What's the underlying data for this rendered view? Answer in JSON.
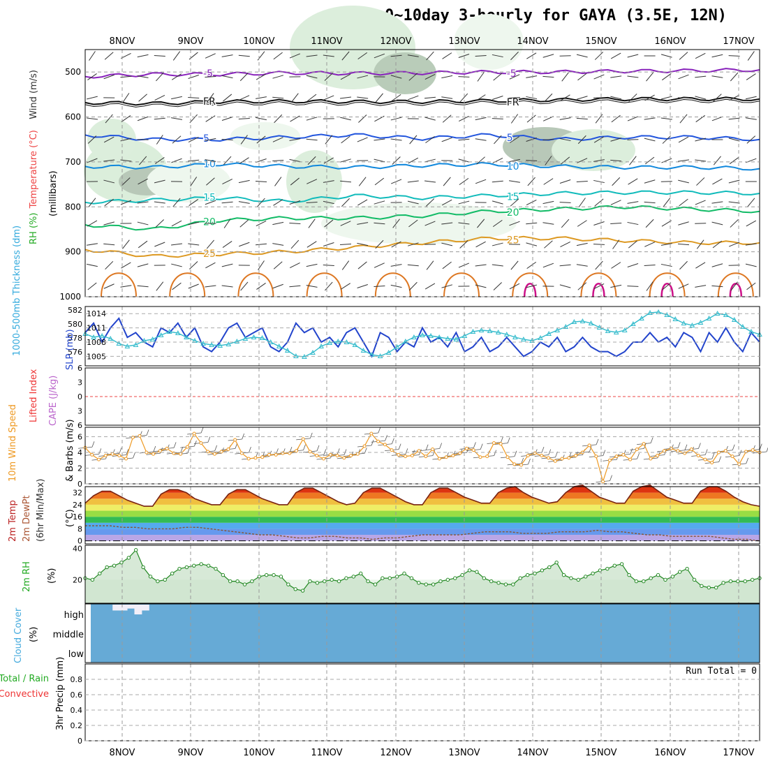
{
  "title": "GFS 0~10day 3-hourly for GAYA (3.5E, 12N)",
  "chart_data": [
    {
      "type": "line",
      "panel": "upper-air",
      "ylabel_parts": [
        {
          "text": "RH (%)",
          "color": "#22aa22"
        },
        {
          "text": "Temperature (°C)",
          "color": "#ee4444"
        },
        {
          "text": "Wind (m/s)",
          "color": "#333333"
        }
      ],
      "ylabel_right": "(millibars)",
      "yaxis": "pressure",
      "ylim": [
        450,
        1000
      ],
      "yticks": [
        500,
        600,
        700,
        800,
        900,
        1000
      ],
      "x_days": [
        "8NOV",
        "9NOV",
        "10NOV",
        "11NOV",
        "12NOV",
        "13NOV",
        "14NOV",
        "15NOV",
        "16NOV",
        "17NOV"
      ],
      "isotherms": [
        {
          "label": "-5",
          "values_mb": [
            510,
            505,
            505,
            502,
            503,
            502,
            500,
            500,
            498,
            497,
            495
          ],
          "color": "#8822bb"
        },
        {
          "label": "FR",
          "values_mb": [
            568,
            570,
            566,
            565,
            566,
            566,
            564,
            562,
            560,
            560,
            560
          ],
          "color": "#111111"
        },
        {
          "label": "5",
          "values_mb": [
            640,
            650,
            650,
            645,
            640,
            648,
            640,
            650,
            645,
            645,
            650
          ],
          "color": "#2255dd"
        },
        {
          "label": "10",
          "values_mb": [
            710,
            712,
            705,
            710,
            712,
            708,
            705,
            710,
            712,
            712,
            715
          ],
          "color": "#1188dd"
        },
        {
          "label": "15",
          "values_mb": [
            790,
            785,
            780,
            788,
            775,
            780,
            775,
            770,
            768,
            768,
            770
          ],
          "color": "#11bbbb"
        },
        {
          "label": "20",
          "values_mb": [
            840,
            850,
            830,
            825,
            825,
            820,
            810,
            805,
            800,
            805,
            810
          ],
          "color": "#11bb66"
        },
        {
          "label": "25",
          "values_mb": [
            895,
            910,
            905,
            900,
            890,
            880,
            870,
            870,
            875,
            880,
            880
          ],
          "color": "#dd9922"
        }
      ]
    },
    {
      "type": "line",
      "panel": "thickness-slp",
      "ylabel_left": "1000-500mb Thickness (dm)",
      "ylabel_right": "SLP (mb)",
      "yticks_left": [
        576,
        578,
        580,
        582
      ],
      "yticks_right": [
        1005,
        1008,
        1011,
        1014
      ],
      "series": [
        {
          "name": "SLP",
          "color": "#2244cc",
          "values": [
            1010,
            1012,
            1008,
            1011,
            1013,
            1009,
            1010,
            1008,
            1007,
            1011,
            1010,
            1012,
            1009,
            1011,
            1007,
            1006,
            1008,
            1011,
            1012,
            1009,
            1010,
            1011,
            1007,
            1006,
            1008,
            1012,
            1010,
            1011,
            1008,
            1009,
            1007,
            1010,
            1011,
            1008,
            1005,
            1010,
            1009,
            1006,
            1008,
            1007,
            1011,
            1008,
            1009,
            1007,
            1010,
            1006,
            1007,
            1009,
            1006,
            1007,
            1009,
            1007,
            1005,
            1006,
            1008,
            1007,
            1009,
            1006,
            1007,
            1009,
            1007,
            1006,
            1006,
            1005,
            1006,
            1008,
            1008,
            1010,
            1008,
            1009,
            1007,
            1010,
            1009,
            1006,
            1010,
            1008,
            1011,
            1008,
            1006,
            1010,
            1008
          ]
        },
        {
          "name": "Thickness",
          "color": "#33bbcc",
          "values": [
            578.6,
            578.1,
            578.3,
            577.9,
            577.2,
            576.8,
            577.0,
            577.6,
            577.8,
            578.4,
            578.9,
            578.7,
            578.1,
            577.6,
            577.2,
            577.0,
            576.9,
            577.1,
            577.5,
            577.9,
            578.1,
            578.0,
            577.4,
            576.8,
            576.2,
            575.4,
            575.3,
            575.9,
            576.8,
            577.3,
            577.5,
            577.4,
            577.0,
            576.2,
            575.6,
            575.4,
            575.9,
            576.7,
            577.5,
            578.1,
            578.4,
            578.3,
            578.1,
            577.9,
            577.8,
            578.3,
            578.9,
            579.1,
            579.0,
            578.8,
            578.5,
            578.1,
            577.8,
            577.6,
            578.0,
            578.6,
            579.1,
            579.6,
            580.3,
            580.4,
            580.1,
            579.5,
            579.0,
            578.8,
            579.1,
            580.0,
            580.8,
            581.6,
            581.7,
            581.3,
            580.7,
            580.1,
            579.8,
            580.2,
            580.8,
            581.5,
            581.3,
            580.6,
            579.6,
            578.9,
            578.5
          ]
        }
      ]
    },
    {
      "type": "line",
      "panel": "stability",
      "ylabel_left": "Lifted Index",
      "ylabel_right": "CAPE (J/kg)",
      "yticks": [
        -6,
        -3,
        0,
        3,
        6
      ],
      "series": [
        {
          "name": "Lifted Index",
          "color": "#ee3333",
          "values": [
            0
          ]
        }
      ]
    },
    {
      "type": "line",
      "panel": "wind10m",
      "ylabel_left": "10m Wind Speed",
      "ylabel_right": "& Barbs (m/s)",
      "yticks": [
        0,
        2,
        4,
        6
      ],
      "series": [
        {
          "name": "10m Wind Speed",
          "color": "#ee9922",
          "values": [
            4.6,
            3.7,
            3.1,
            3.6,
            3.8,
            3.6,
            3.2,
            5.9,
            6.1,
            4.0,
            3.8,
            4.2,
            4.5,
            3.9,
            3.8,
            4.7,
            6.4,
            5.2,
            4.1,
            3.8,
            4.1,
            4.4,
            5.6,
            3.9,
            3.2,
            3.3,
            3.4,
            3.7,
            3.7,
            3.9,
            3.9,
            4.2,
            5.7,
            4.1,
            3.6,
            3.2,
            3.7,
            3.6,
            3.3,
            3.6,
            3.8,
            4.8,
            6.4,
            5.4,
            5.0,
            4.3,
            3.7,
            3.5,
            3.6,
            4.2,
            3.5,
            4.4,
            3.2,
            3.4,
            3.6,
            3.9,
            4.5,
            4.3,
            3.4,
            3.5,
            5.2,
            5.1,
            3.4,
            2.5,
            2.4,
            3.6,
            3.9,
            3.6,
            3.3,
            2.9,
            3.2,
            3.3,
            3.6,
            4.0,
            4.9,
            3.5,
            0.3,
            3.0,
            3.5,
            3.7,
            3.1,
            4.4,
            5.1,
            3.2,
            3.6,
            4.2,
            4.5,
            4.2,
            3.9,
            4.4,
            3.6,
            3.1,
            2.7,
            4.0,
            4.2,
            3.5,
            2.5,
            4.1,
            4.3,
            4.0
          ]
        }
      ]
    },
    {
      "type": "area",
      "panel": "temperature2m",
      "ylabel_parts": [
        "2m Temp",
        "2m DewPt",
        "(6hr Min/Max)"
      ],
      "ylabel_right": "(°C)",
      "yticks": [
        0,
        8,
        16,
        24,
        32
      ],
      "series": [
        {
          "name": "2m Temp",
          "color": "#772211",
          "values": [
            25,
            30,
            33,
            33,
            30,
            27,
            25,
            23,
            23,
            31,
            34,
            34,
            32,
            28,
            26,
            24,
            24,
            31,
            34,
            34,
            31,
            28,
            26,
            24,
            24,
            32,
            35,
            35,
            32,
            29,
            26,
            24,
            25,
            32,
            35,
            35,
            32,
            29,
            26,
            24,
            24,
            32,
            35,
            35,
            32,
            29,
            27,
            25,
            25,
            32,
            35,
            36,
            32,
            29,
            27,
            25,
            26,
            32,
            36,
            37,
            33,
            29,
            27,
            25,
            25,
            33,
            36,
            37,
            33,
            29,
            27,
            25,
            25,
            33,
            36,
            36,
            33,
            29,
            26,
            24,
            23
          ]
        },
        {
          "name": "2m DewPt",
          "color": "#885533",
          "values": [
            10,
            10,
            10,
            9,
            9,
            8,
            8,
            8,
            9,
            9,
            8,
            7,
            6,
            5,
            4,
            4,
            3,
            2,
            2,
            3,
            3,
            2,
            2,
            1,
            2,
            2,
            3,
            4,
            4,
            4,
            4,
            5,
            6,
            6,
            6,
            5,
            5,
            5,
            6,
            6,
            6,
            7,
            6,
            6,
            5,
            4,
            4,
            3,
            3,
            3,
            3,
            2,
            1,
            1,
            0
          ]
        }
      ]
    },
    {
      "type": "area",
      "panel": "rh2m",
      "ylabel_left": "2m RH",
      "ylabel_right": "(%)",
      "yticks": [
        20,
        40
      ],
      "series": [
        {
          "name": "2m RH",
          "color": "#228822",
          "values": [
            21,
            20,
            24,
            28,
            29,
            31,
            34,
            39,
            28,
            22,
            19,
            20,
            24,
            27,
            28,
            29,
            30,
            29,
            27,
            23,
            19,
            19,
            17,
            19,
            22,
            23,
            23,
            22,
            17,
            14,
            13,
            19,
            18,
            19,
            20,
            19,
            21,
            22,
            24,
            19,
            17,
            21,
            21,
            22,
            24,
            21,
            18,
            17,
            17,
            19,
            20,
            21,
            23,
            26,
            25,
            21,
            19,
            18,
            17,
            17,
            21,
            23,
            24,
            26,
            28,
            31,
            23,
            21,
            20,
            22,
            24,
            26,
            27,
            29,
            30,
            23,
            19,
            19,
            21,
            23,
            20,
            22,
            25,
            27,
            20,
            16,
            15,
            15,
            18,
            19,
            19,
            19,
            20,
            21
          ]
        }
      ]
    },
    {
      "type": "area",
      "panel": "cloud",
      "ylabel_left": "Cloud Cover",
      "ylabel_right": "(%)",
      "level_labels": [
        "high",
        "middle",
        "low"
      ],
      "color": "#66aad6",
      "high_cloud_pct": [
        100,
        100,
        100,
        70,
        70,
        80,
        50,
        70,
        100,
        100,
        100,
        100,
        100,
        100,
        100,
        100,
        100,
        100,
        100,
        100,
        100,
        100,
        100,
        100,
        100,
        100,
        100,
        100,
        100,
        100,
        100,
        100,
        100,
        100,
        100,
        100,
        100,
        100,
        100,
        100,
        100,
        100,
        100,
        100,
        100,
        100,
        100,
        100,
        100,
        100,
        100,
        100,
        100,
        100,
        100,
        100,
        100,
        100,
        100,
        100,
        100,
        100,
        100,
        100,
        100,
        100,
        100,
        100,
        100,
        100,
        100,
        100,
        100,
        100,
        100,
        100,
        100,
        100,
        100,
        100,
        100,
        100,
        100,
        100,
        100,
        100,
        100,
        100,
        100,
        100,
        100,
        100
      ]
    },
    {
      "type": "bar",
      "panel": "precip",
      "ylabel_left_parts": [
        {
          "text": "Total / Rain",
          "color": "#22aa22"
        },
        {
          "text": "Convective",
          "color": "#ee3333"
        }
      ],
      "ylabel_right": "3hr Precip (mm)",
      "yticks": [
        0,
        0.2,
        0.4,
        0.6,
        0.8
      ],
      "ylim": [
        0,
        1.0
      ],
      "run_total_label": "Run Total = 0",
      "series": [
        {
          "name": "Total",
          "values": [
            0
          ]
        }
      ]
    }
  ]
}
